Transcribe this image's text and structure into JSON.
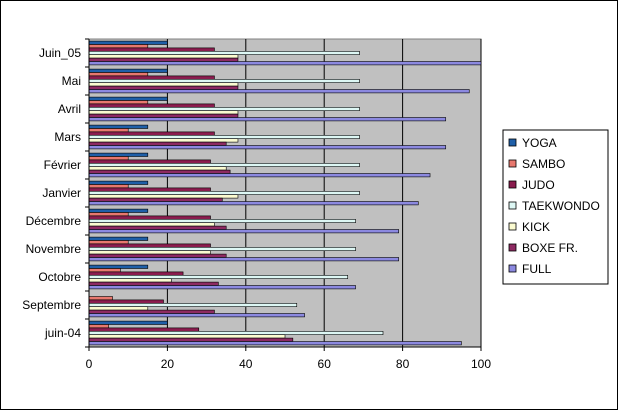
{
  "chart_data": {
    "type": "bar",
    "orientation": "horizontal",
    "categories": [
      "juin-04",
      "Septembre",
      "Octobre",
      "Novembre",
      "Décembre",
      "Janvier",
      "Février",
      "Mars",
      "Avril",
      "Mai",
      "Juin_05"
    ],
    "series": [
      {
        "name": "YOGA",
        "color": "#1F5FA8",
        "values": [
          20,
          0,
          15,
          15,
          15,
          15,
          15,
          15,
          20,
          20,
          20
        ]
      },
      {
        "name": "SAMBO",
        "color": "#E8786E",
        "values": [
          5,
          6,
          8,
          10,
          10,
          10,
          10,
          10,
          15,
          15,
          15
        ]
      },
      {
        "name": "JUDO",
        "color": "#8A1C4E",
        "values": [
          28,
          19,
          24,
          31,
          31,
          31,
          31,
          32,
          32,
          32,
          32
        ]
      },
      {
        "name": "TAEKWONDO",
        "color": "#DDF7F4",
        "values": [
          75,
          53,
          66,
          68,
          68,
          69,
          69,
          69,
          69,
          69,
          69
        ]
      },
      {
        "name": "KICK",
        "color": "#FBFBD0",
        "values": [
          50,
          15,
          21,
          31,
          32,
          38,
          35,
          38,
          38,
          38,
          38
        ]
      },
      {
        "name": "BOXE FR.",
        "color": "#8E2A62",
        "values": [
          52,
          32,
          33,
          35,
          35,
          34,
          36,
          35,
          38,
          38,
          38
        ]
      },
      {
        "name": "FULL",
        "color": "#8C89E0",
        "values": [
          95,
          55,
          68,
          79,
          79,
          84,
          87,
          91,
          91,
          97,
          100
        ]
      }
    ],
    "xlim": [
      0,
      100
    ],
    "xticks": [
      "0",
      "20",
      "40",
      "60",
      "80",
      "100"
    ],
    "grid": true,
    "plot_background": "#C0C0C0",
    "legend_position": "right"
  }
}
